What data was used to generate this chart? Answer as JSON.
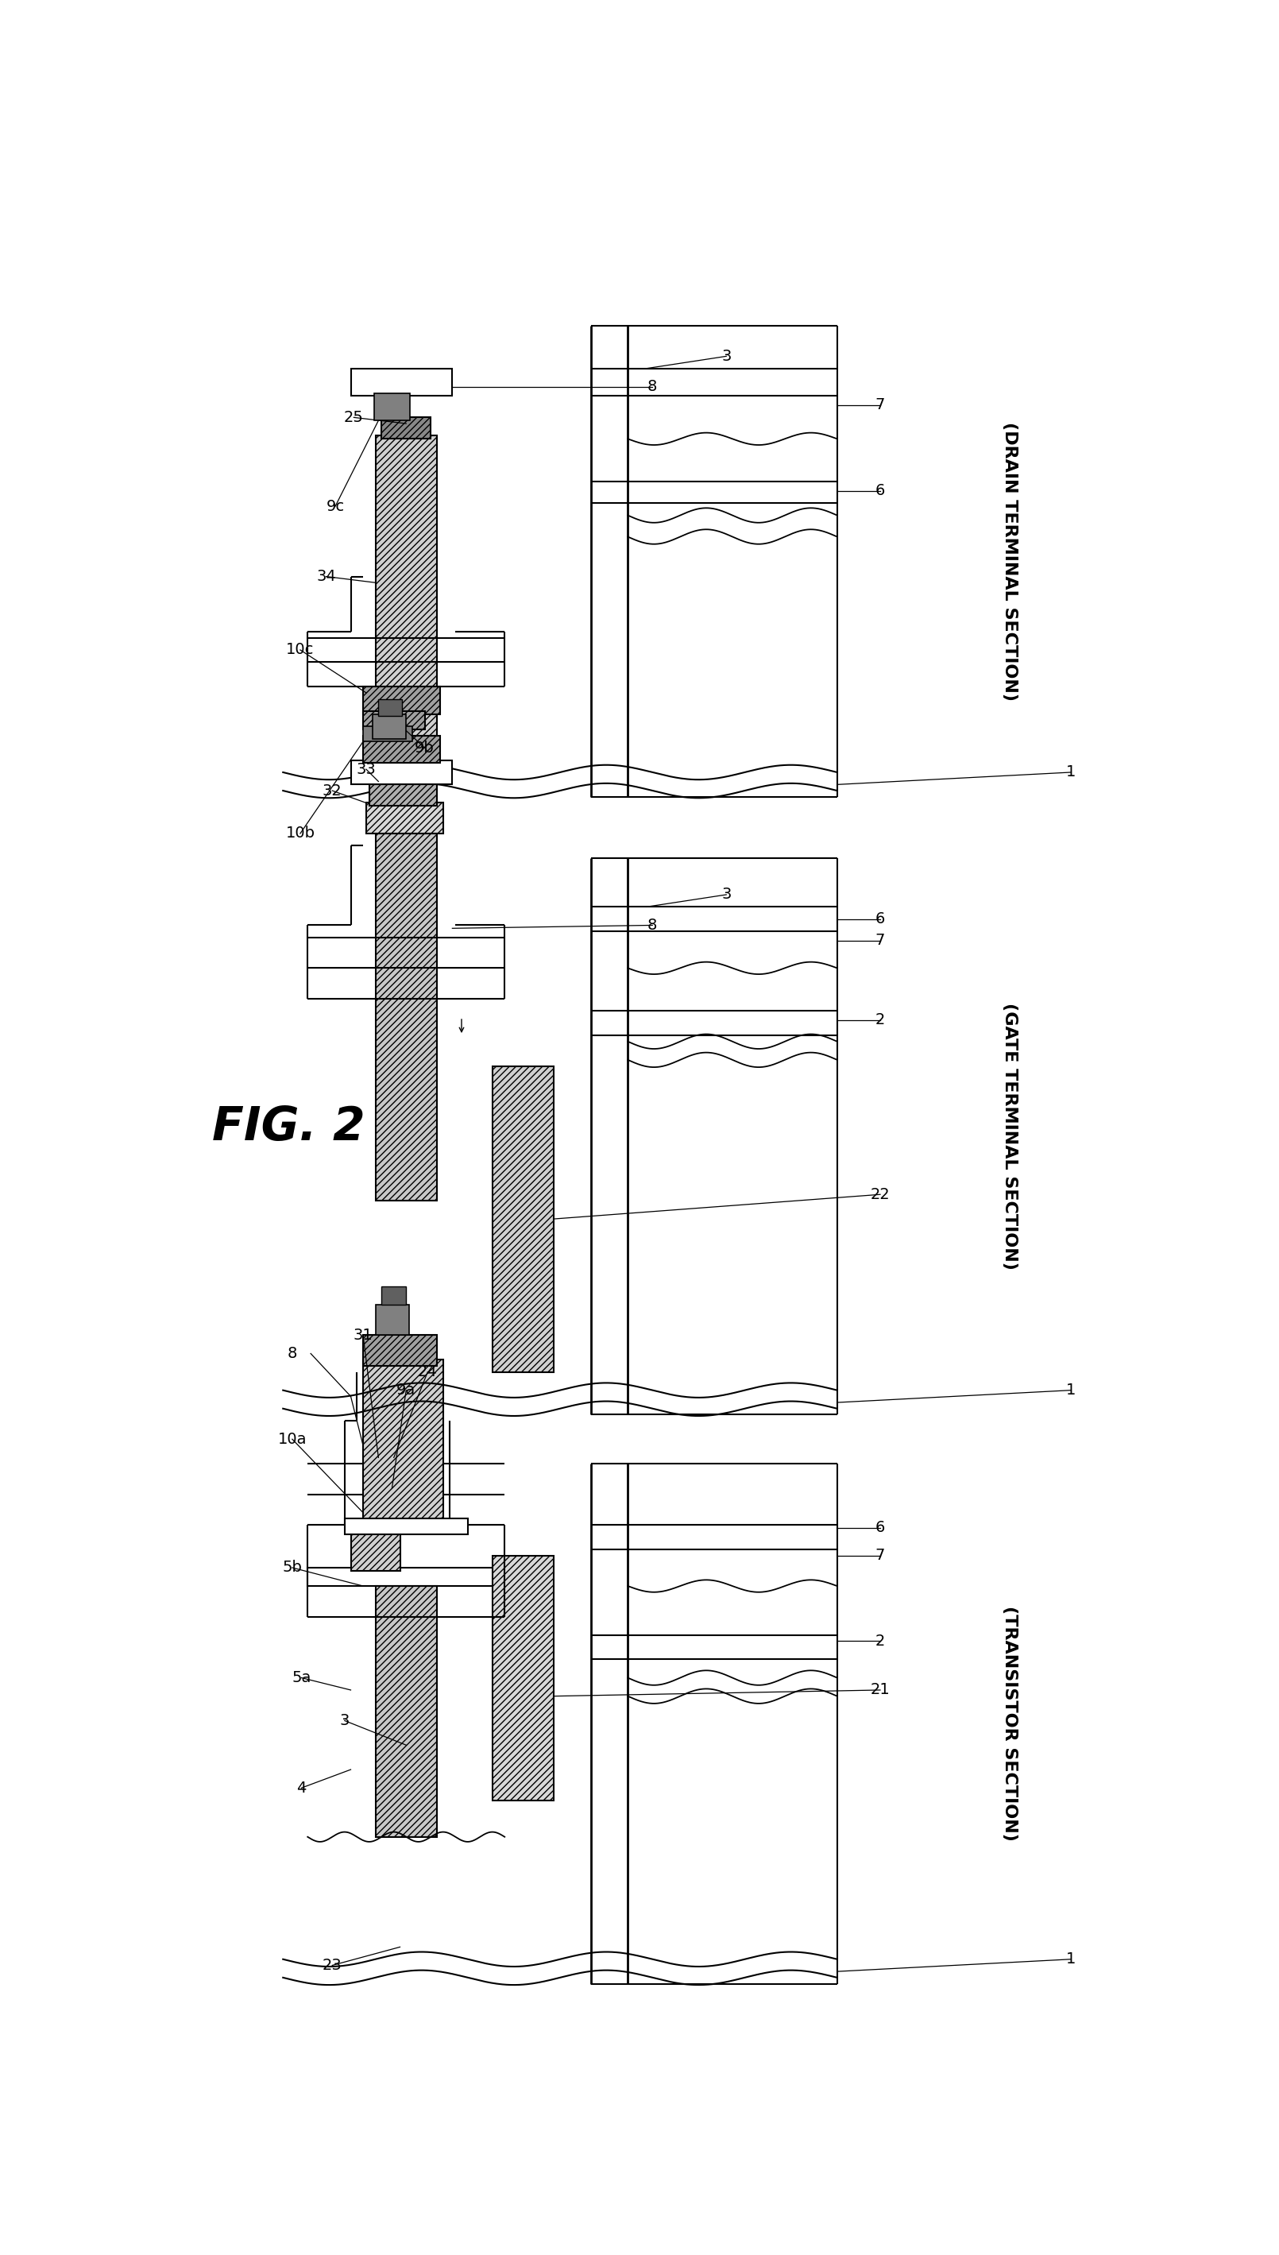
{
  "bg_color": "#ffffff",
  "fig_label": "FIG. 2",
  "transistor_label": "(TRANSISTOR SECTION)",
  "gate_label": "(GATE TERMINAL SECTION)",
  "drain_label": "(DRAIN TERMINAL SECTION)",
  "hatch1": "////",
  "hatch2": "\\\\\\\\"
}
